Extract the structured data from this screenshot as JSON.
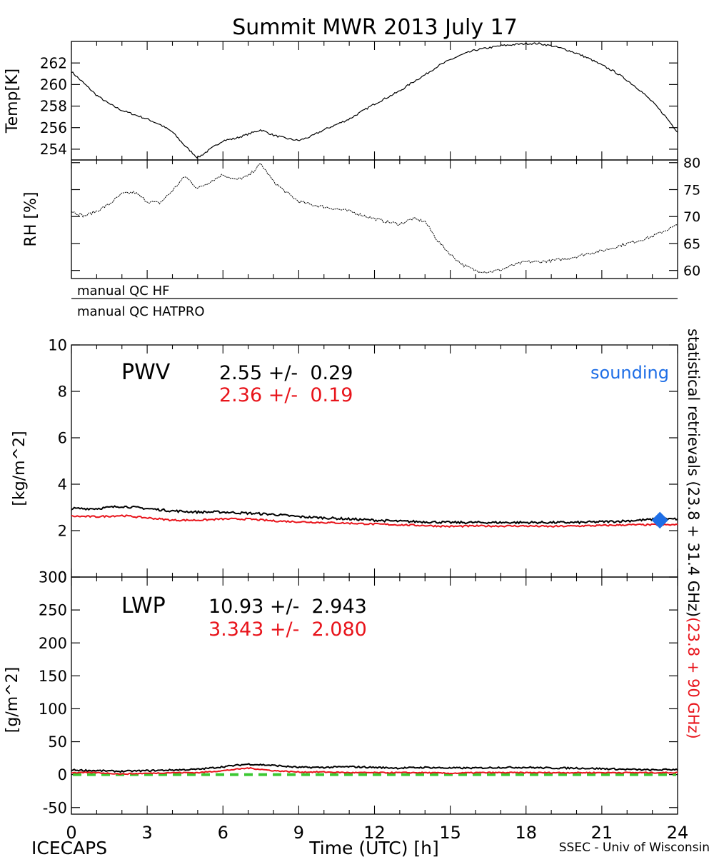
{
  "title": "Summit MWR 2013 July 17",
  "footer": {
    "left": "ICECAPS",
    "center": "Time (UTC) [h]",
    "right": "SSEC - Univ of Wisconsin"
  },
  "colors": {
    "black_series": "#000000",
    "red_series": "#e8141b",
    "sounding": "#1e6ee6",
    "zero_line": "#3cc832"
  },
  "right_label": {
    "black_part": "statistical retrievals (23.8 + 31.4 GHz)",
    "red_part": "(23.8 + 90 GHz)"
  },
  "qc": {
    "hf": "manual QC HF",
    "hatpro": "manual QC HATPRO"
  },
  "pwv_stats": {
    "label": "PWV",
    "black": "2.55 +/-  0.29",
    "red": "2.36 +/-  0.19",
    "sounding_label": "sounding"
  },
  "lwp_stats": {
    "label": "LWP",
    "black": "10.93 +/-  2.943",
    "red": "3.343 +/-  2.080"
  },
  "chart_data": [
    {
      "id": "temp",
      "type": "line",
      "ylabel": "Temp[K]",
      "xlim": [
        0,
        24
      ],
      "ylim": [
        253,
        264
      ],
      "yticks": [
        254,
        256,
        258,
        260,
        262
      ],
      "x": [
        0,
        0.5,
        1,
        1.5,
        2,
        2.5,
        3,
        3.5,
        4,
        4.5,
        5,
        5.5,
        6,
        6.5,
        7,
        7.5,
        8,
        8.5,
        9,
        9.5,
        10,
        10.5,
        11,
        11.5,
        12,
        12.5,
        13,
        13.5,
        14,
        14.5,
        15,
        15.5,
        16,
        16.5,
        17,
        17.5,
        18,
        18.5,
        19,
        19.5,
        20,
        20.5,
        21,
        21.5,
        22,
        22.5,
        23,
        23.5,
        24
      ],
      "y": [
        261.2,
        260.1,
        259,
        258.2,
        257.6,
        257.2,
        256.8,
        256.3,
        255.6,
        254.3,
        253.2,
        254,
        254.8,
        255,
        255.4,
        255.8,
        255.3,
        255,
        254.8,
        255.2,
        255.8,
        256.3,
        256.8,
        257.5,
        258.2,
        258.8,
        259.4,
        260.2,
        260.9,
        261.7,
        262.3,
        262.8,
        263.2,
        263.4,
        263.6,
        263.7,
        263.8,
        263.8,
        263.6,
        263.3,
        262.9,
        262.4,
        261.8,
        261.2,
        260.4,
        259.5,
        258.4,
        257.1,
        255.6
      ]
    },
    {
      "id": "rh",
      "type": "line",
      "ylabel": "RH [%]",
      "xlim": [
        0,
        24
      ],
      "ylim": [
        58.5,
        80.5
      ],
      "yticks": [
        60,
        65,
        70,
        75,
        80
      ],
      "x": [
        0,
        0.5,
        1,
        1.5,
        2,
        2.5,
        3,
        3.5,
        4,
        4.5,
        5,
        5.5,
        6,
        6.5,
        7,
        7.5,
        8,
        8.5,
        9,
        9.5,
        10,
        10.5,
        11,
        11.5,
        12,
        12.5,
        13,
        13.5,
        14,
        14.5,
        15,
        15.5,
        16,
        16.5,
        17,
        17.5,
        18,
        18.5,
        19,
        19.5,
        20,
        20.5,
        21,
        21.5,
        22,
        22.5,
        23,
        23.5,
        24
      ],
      "y": [
        71,
        70.1,
        71,
        72.3,
        74.2,
        74.5,
        72.8,
        72.5,
        74.8,
        77.5,
        75.2,
        76.5,
        77.8,
        76.8,
        77.5,
        79.8,
        76.5,
        74.5,
        72.8,
        72.2,
        71.8,
        71.4,
        71,
        70.3,
        69.6,
        69,
        68.6,
        69.6,
        69.1,
        65.5,
        63,
        61,
        60,
        59.7,
        60.1,
        61,
        61.6,
        61.6,
        61.8,
        62.1,
        62.6,
        63.2,
        63.6,
        64.3,
        65,
        65.6,
        66.3,
        67.4,
        68.4
      ]
    },
    {
      "id": "pwv",
      "type": "line",
      "ylabel": "[kg/m^2]",
      "xlim": [
        0,
        24
      ],
      "ylim": [
        0,
        10
      ],
      "yticks": [
        0,
        2,
        4,
        6,
        8,
        10
      ],
      "x": [
        0,
        1,
        2,
        3,
        4,
        5,
        6,
        7,
        8,
        9,
        10,
        11,
        12,
        13,
        14,
        15,
        16,
        17,
        18,
        19,
        20,
        21,
        22,
        23,
        24
      ],
      "series": [
        {
          "name": "statistical retrievals (23.8 + 31.4 GHz)",
          "color": "#000000",
          "values": [
            2.95,
            2.95,
            3.05,
            2.95,
            2.85,
            2.8,
            2.8,
            2.75,
            2.7,
            2.6,
            2.55,
            2.5,
            2.45,
            2.4,
            2.38,
            2.35,
            2.35,
            2.35,
            2.35,
            2.35,
            2.35,
            2.38,
            2.42,
            2.48,
            2.5
          ]
        },
        {
          "name": "(23.8 + 90 GHz)",
          "color": "#e8141b",
          "values": [
            2.62,
            2.6,
            2.65,
            2.55,
            2.45,
            2.45,
            2.5,
            2.5,
            2.42,
            2.38,
            2.35,
            2.32,
            2.28,
            2.25,
            2.22,
            2.18,
            2.2,
            2.2,
            2.2,
            2.18,
            2.2,
            2.22,
            2.25,
            2.25,
            2.25
          ]
        }
      ],
      "markers": [
        {
          "label": "sounding",
          "x": 23.3,
          "y": 2.45,
          "color": "#1e6ee6"
        }
      ]
    },
    {
      "id": "lwp",
      "type": "line",
      "ylabel": "[g/m^2]",
      "xlabel": "Time (UTC) [h]",
      "xlim": [
        0,
        24
      ],
      "ylim": [
        -60,
        300
      ],
      "xticks": [
        0,
        3,
        6,
        9,
        12,
        15,
        18,
        21,
        24
      ],
      "yticks": [
        -50,
        0,
        50,
        100,
        150,
        200,
        250,
        300
      ],
      "x": [
        0,
        1,
        2,
        3,
        4,
        5,
        6,
        7,
        8,
        9,
        10,
        11,
        12,
        13,
        14,
        15,
        16,
        17,
        18,
        19,
        20,
        21,
        22,
        23,
        24
      ],
      "series": [
        {
          "name": "statistical retrievals (23.8 + 31.4 GHz)",
          "color": "#000000",
          "values": [
            7,
            6,
            5,
            6,
            7,
            8,
            12,
            16,
            14,
            11,
            11,
            12,
            11,
            10,
            11,
            10,
            10,
            11,
            11,
            10,
            10,
            9,
            8,
            7,
            8
          ]
        },
        {
          "name": "(23.8 + 90 GHz)",
          "color": "#e8141b",
          "values": [
            3,
            3,
            1,
            2,
            3,
            3,
            6,
            10,
            6,
            4,
            4,
            3,
            3,
            3,
            3,
            2,
            3,
            3,
            3,
            3,
            3,
            3,
            3,
            3,
            3
          ]
        }
      ],
      "reference_line": {
        "y": 0,
        "color": "#3cc832",
        "style": "dashed"
      }
    }
  ]
}
